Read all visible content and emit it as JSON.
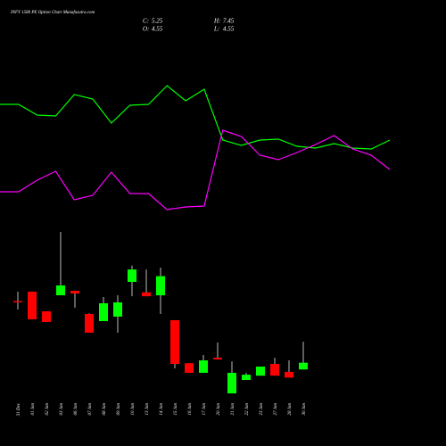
{
  "chart_data": [
    {
      "type": "line",
      "x": [
        0,
        1,
        2,
        3,
        4,
        5,
        6,
        7,
        8,
        9,
        10,
        11,
        12,
        13,
        14,
        15,
        16,
        17,
        18,
        19,
        20,
        21
      ],
      "xlim": [
        0,
        21
      ],
      "ylim": [
        0,
        200
      ],
      "series": [
        {
          "color": "#00ff00",
          "values": [
            133,
            133,
            121,
            120,
            144,
            139,
            112,
            132,
            133,
            154,
            137,
            150,
            93,
            87,
            93,
            94,
            86,
            84,
            89,
            84,
            83,
            93
          ]
        },
        {
          "color": "#ff00ff",
          "values": [
            35,
            35,
            48,
            58,
            26,
            31,
            57,
            33,
            33,
            15,
            18,
            19,
            104,
            97,
            76,
            71,
            79,
            88,
            98,
            83,
            76,
            60
          ]
        }
      ]
    },
    {
      "type": "candlestick",
      "title": "INFY 1580 PE Option Chart Munafasutra.com",
      "stats": [
        {
          "label": "C:",
          "value": 5.25
        },
        {
          "label": "H:",
          "value": 7.45
        },
        {
          "label": "O:",
          "value": 4.55
        },
        {
          "label": "L:",
          "value": 4.55
        }
      ],
      "categories": [
        "31 Dec",
        "01 Jan",
        "02 Jan",
        "03 Jan",
        "06 Jan",
        "07 Jan",
        "08 Jan",
        "09 Jan",
        "10 Jan",
        "13 Jan",
        "14 Jan",
        "15 Jan",
        "16 Jan",
        "17 Jan",
        "20 Jan",
        "21 Jan",
        "22 Jan",
        "23 Jan",
        "27 Jan",
        "28 Jan",
        "30 Jan"
      ],
      "open": [
        11.7,
        12.68,
        10.63,
        12.3,
        12.77,
        10.35,
        9.6,
        10.07,
        13.7,
        12.6,
        12.3,
        9.7,
        5.2,
        4.2,
        5.78,
        2.05,
        3.45,
        3.9,
        5.13,
        4.3,
        4.55
      ],
      "high": [
        12.68,
        12.7,
        10.6,
        18.92,
        12.8,
        10.4,
        12.12,
        12.3,
        15.4,
        15.0,
        15.2,
        9.7,
        5.2,
        6.06,
        7.36,
        5.4,
        4.2,
        4.85,
        5.78,
        5.5,
        7.45
      ],
      "low": [
        10.81,
        9.8,
        9.5,
        12.3,
        11.0,
        8.4,
        9.6,
        8.39,
        12.2,
        12.2,
        10.35,
        4.66,
        4.2,
        4.2,
        5.6,
        2.05,
        3.45,
        3.9,
        3.9,
        3.7,
        4.55
      ],
      "close": [
        11.6,
        9.79,
        9.51,
        13.33,
        12.49,
        8.39,
        11.47,
        11.56,
        15.0,
        12.2,
        14.3,
        5.13,
        4.2,
        5.5,
        5.6,
        4.2,
        4.0,
        4.85,
        3.9,
        3.7,
        5.25
      ],
      "up_color": "#00ff00",
      "down_color": "#ff0000",
      "ylim": [
        0,
        22
      ]
    }
  ]
}
